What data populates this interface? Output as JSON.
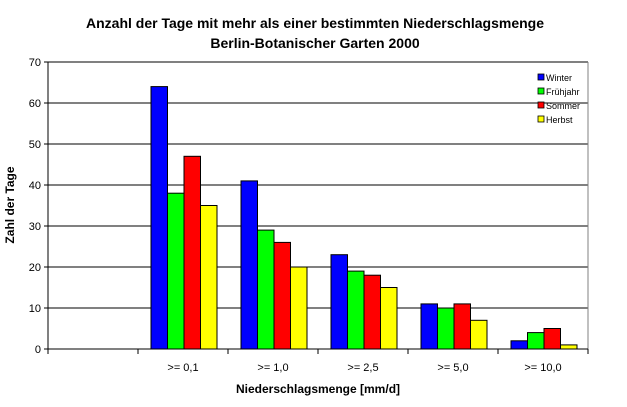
{
  "chart_data": {
    "type": "bar",
    "title": "Anzahl der Tage mit mehr als einer bestimmten Niederschlagsmenge",
    "subtitle": "Berlin-Botanischer Garten 2000",
    "xlabel": "Niederschlagsmenge [mm/d]",
    "ylabel": "Zahl der Tage",
    "ylim": [
      0,
      70
    ],
    "yticks": [
      "0",
      "10",
      "20",
      "30",
      "40",
      "50",
      "60",
      "70"
    ],
    "grid": true,
    "legend_position": "top-right",
    "categories": [
      "",
      ">= 0,1",
      ">= 1,0",
      ">= 2,5",
      ">= 5,0",
      ">= 10,0"
    ],
    "series": [
      {
        "name": "Winter",
        "color": "#0000ff",
        "values": [
          null,
          64,
          41,
          23,
          11,
          2
        ]
      },
      {
        "name": "Frühjahr",
        "color": "#00ff00",
        "values": [
          null,
          38,
          29,
          19,
          10,
          4
        ]
      },
      {
        "name": "Sommer",
        "color": "#ff0000",
        "values": [
          null,
          47,
          26,
          18,
          11,
          5
        ]
      },
      {
        "name": "Herbst",
        "color": "#ffff00",
        "values": [
          null,
          35,
          20,
          15,
          7,
          1
        ]
      }
    ]
  }
}
